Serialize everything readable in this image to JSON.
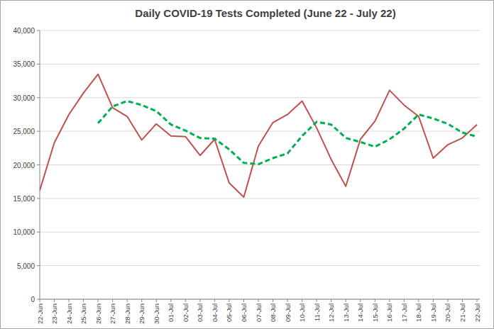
{
  "chart_data": {
    "type": "line",
    "title": "Daily COVID-19 Tests Completed (June 22 - July 22)",
    "categories": [
      "22-Jun",
      "23-Jun",
      "24-Jun",
      "25-Jun",
      "26-Jun",
      "27-Jun",
      "28-Jun",
      "29-Jun",
      "30-Jun",
      "01-Jul",
      "02-Jul",
      "03-Jul",
      "04-Jul",
      "05-Jul",
      "06-Jul",
      "07-Jul",
      "08-Jul",
      "09-Jul",
      "10-Jul",
      "11-Jul",
      "12-Jul",
      "13-Jul",
      "14-Jul",
      "15-Jul",
      "16-Jul",
      "17-Jul",
      "18-Jul",
      "19-Jul",
      "20-Jul",
      "21-Jul",
      "22-Jul"
    ],
    "series": [
      {
        "color": "#c0504d",
        "line_style": "solid",
        "values": [
          16200,
          23300,
          27500,
          30700,
          33500,
          28500,
          27200,
          23700,
          26100,
          24300,
          24200,
          21400,
          23800,
          17300,
          15200,
          22800,
          26300,
          27500,
          29500,
          25500,
          20800,
          16800,
          23800,
          26500,
          31100,
          28900,
          27200,
          21000,
          23000,
          24000,
          26000
        ]
      },
      {
        "color": "#00b050",
        "line_style": "dashed",
        "values": [
          null,
          null,
          null,
          null,
          26200,
          28700,
          29500,
          28900,
          28000,
          26000,
          25100,
          24000,
          23900,
          22300,
          20300,
          20100,
          21000,
          21700,
          24300,
          26400,
          26000,
          24000,
          23400,
          22700,
          23800,
          25400,
          27500,
          26900,
          26100,
          24800,
          24200
        ]
      }
    ],
    "ylim": [
      0,
      40000
    ],
    "yticks": [
      0,
      {
        "value": 5000,
        "label": "5,000"
      },
      {
        "value": 10000,
        "label": "10,000"
      },
      {
        "value": 15000,
        "label": "15,000"
      },
      {
        "value": 20000,
        "label": "20,000"
      },
      {
        "value": 25000,
        "label": "25,000"
      },
      {
        "value": 30000,
        "label": "30,000"
      },
      {
        "value": 35000,
        "label": "35,000"
      },
      {
        "value": 40000,
        "label": "40,000"
      }
    ],
    "grid": true
  }
}
